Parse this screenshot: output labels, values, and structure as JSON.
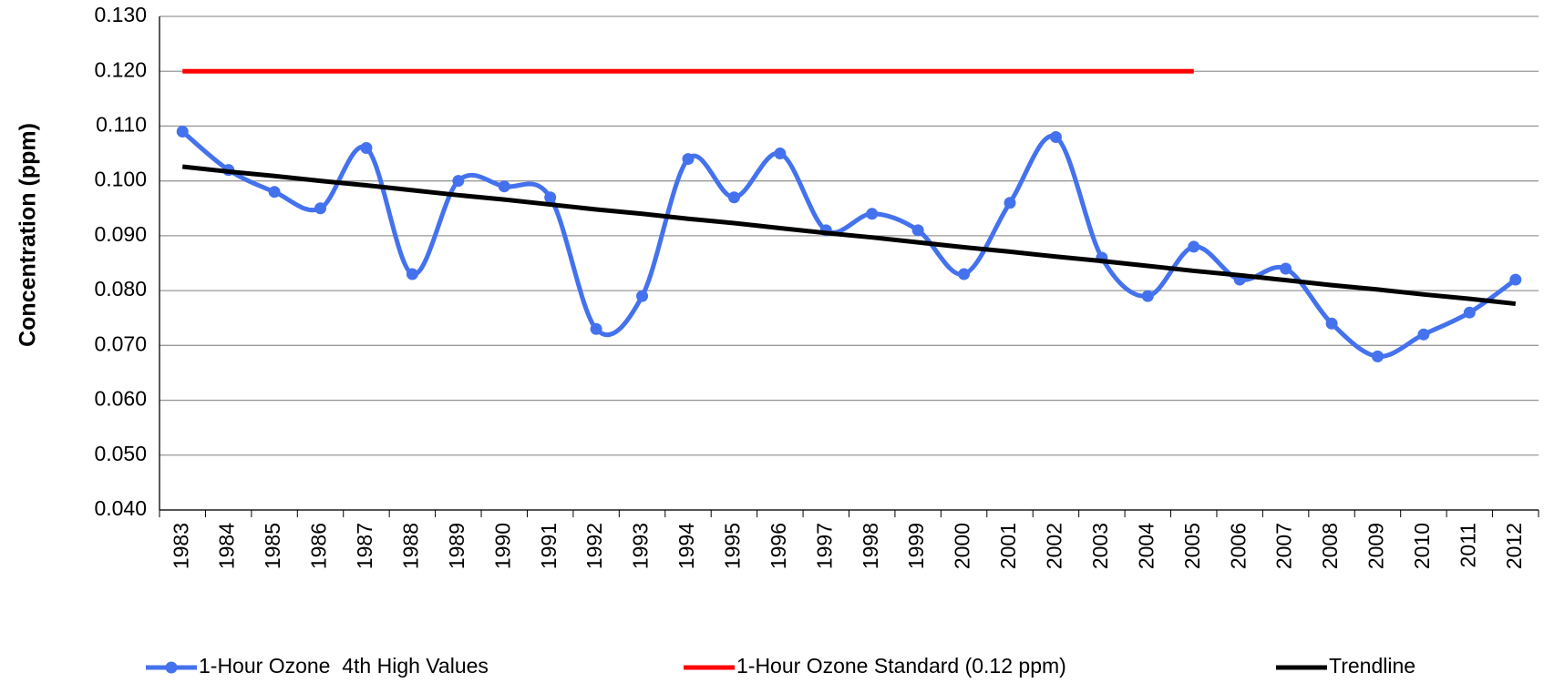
{
  "chart_data": {
    "type": "line",
    "ylabel": "Concentration (ppm)",
    "categories": [
      "1983",
      "1984",
      "1985",
      "1986",
      "1987",
      "1988",
      "1989",
      "1990",
      "1991",
      "1992",
      "1993",
      "1994",
      "1995",
      "1996",
      "1997",
      "1998",
      "1999",
      "2000",
      "2001",
      "2002",
      "2003",
      "2004",
      "2005",
      "2006",
      "2007",
      "2008",
      "2009",
      "2010",
      "2011",
      "2012"
    ],
    "series": [
      {
        "name": "1-Hour Ozone  4th High Values",
        "color": "#4472ee",
        "markers": true,
        "smooth": true,
        "values": [
          0.109,
          0.102,
          0.098,
          0.095,
          0.106,
          0.083,
          0.1,
          0.099,
          0.097,
          0.073,
          0.079,
          0.104,
          0.097,
          0.105,
          0.091,
          0.094,
          0.091,
          0.083,
          0.096,
          0.108,
          0.086,
          0.079,
          0.088,
          0.082,
          0.084,
          0.074,
          0.068,
          0.072,
          0.076,
          0.082
        ]
      },
      {
        "name": "1-Hour Ozone Standard (0.12 ppm)",
        "color": "#ff0000",
        "markers": false,
        "smooth": false,
        "values": [
          0.12,
          0.12,
          0.12,
          0.12,
          0.12,
          0.12,
          0.12,
          0.12,
          0.12,
          0.12,
          0.12,
          0.12,
          0.12,
          0.12,
          0.12,
          0.12,
          0.12,
          0.12,
          0.12,
          0.12,
          0.12,
          0.12,
          0.12,
          null,
          null,
          null,
          null,
          null,
          null,
          null
        ]
      },
      {
        "name": "Trendline",
        "color": "#000000",
        "markers": false,
        "smooth": false,
        "values": [
          0.1026,
          0.1017,
          0.1009,
          0.1,
          0.0992,
          0.0983,
          0.0974,
          0.0966,
          0.0957,
          0.0948,
          0.094,
          0.0931,
          0.0923,
          0.0914,
          0.0905,
          0.0897,
          0.0888,
          0.0879,
          0.0871,
          0.0862,
          0.0854,
          0.0845,
          0.0836,
          0.0828,
          0.0819,
          0.081,
          0.0802,
          0.0793,
          0.0785,
          0.0776
        ]
      }
    ],
    "ylim": [
      0.04,
      0.13
    ],
    "yticks": [
      {
        "value": 0.04,
        "label": "0.040"
      },
      {
        "value": 0.05,
        "label": "0.050"
      },
      {
        "value": 0.06,
        "label": "0.060"
      },
      {
        "value": 0.07,
        "label": "0.070"
      },
      {
        "value": 0.08,
        "label": "0.080"
      },
      {
        "value": 0.09,
        "label": "0.090"
      },
      {
        "value": 0.1,
        "label": "0.100"
      },
      {
        "value": 0.11,
        "label": "0.110"
      },
      {
        "value": 0.12,
        "label": "0.120"
      },
      {
        "value": 0.13,
        "label": "0.130"
      }
    ],
    "grid": true,
    "legend": "bottom"
  }
}
